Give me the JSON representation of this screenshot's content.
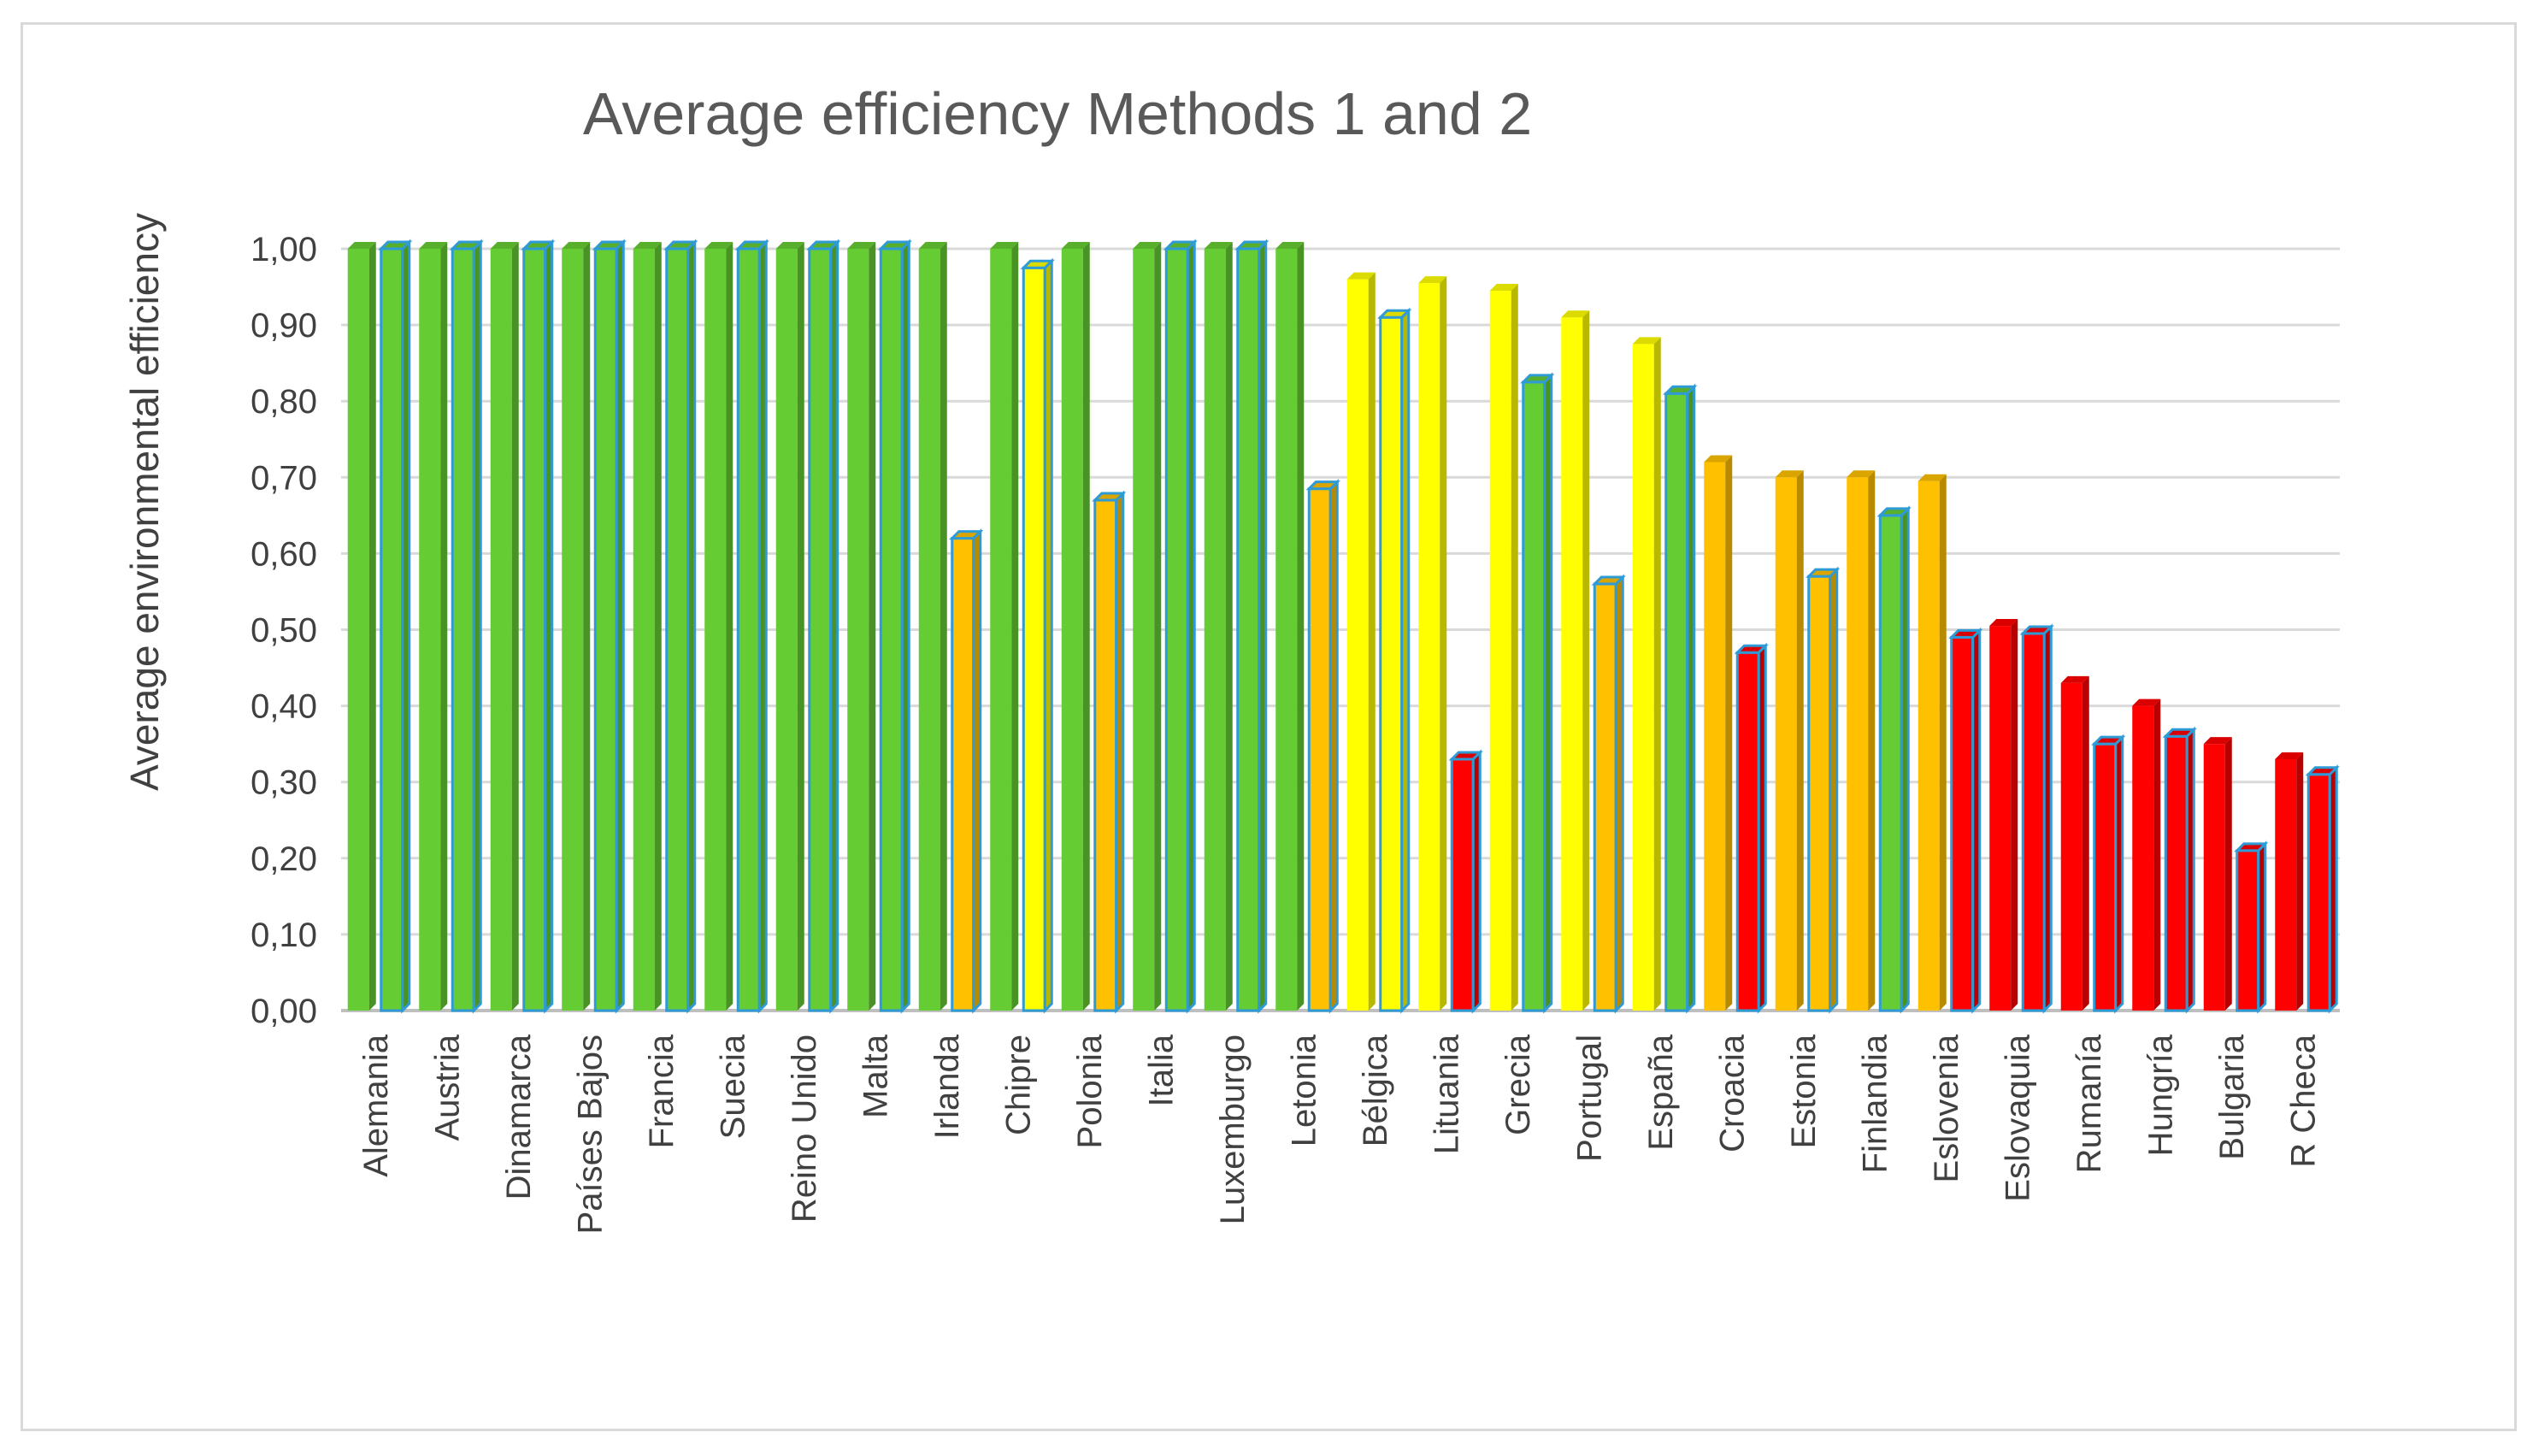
{
  "chart_data": {
    "type": "bar",
    "title": "Average efficiency Methods 1 and 2",
    "xlabel": "",
    "ylabel": "Average environmental efficiency",
    "ylim": [
      0,
      1
    ],
    "yticks": [
      "0,00",
      "0,10",
      "0,20",
      "0,30",
      "0,40",
      "0,50",
      "0,60",
      "0,70",
      "0,80",
      "0,90",
      "1,00"
    ],
    "grid": true,
    "legend": "none",
    "categories": [
      "Alemania",
      "Austria",
      "Dinamarca",
      "Países Bajos",
      "Francia",
      "Suecia",
      "Reino Unido",
      "Malta",
      "Irlanda",
      "Chipre",
      "Polonia",
      "Italia",
      "Luxemburgo",
      "Letonia",
      "Bélgica",
      "Lituania",
      "Grecia",
      "Portugal",
      "España",
      "Croacia",
      "Estonia",
      "Finlandia",
      "Eslovenia",
      "Eslovaquia",
      "Rumanía",
      "Hungría",
      "Bulgaria",
      "R Checa"
    ],
    "series": [
      {
        "values": [
          1.0,
          1.0,
          1.0,
          1.0,
          1.0,
          1.0,
          1.0,
          1.0,
          1.0,
          1.0,
          1.0,
          1.0,
          1.0,
          1.0,
          0.96,
          0.955,
          0.945,
          0.91,
          0.875,
          0.72,
          0.7,
          0.7,
          0.695,
          0.505,
          0.43,
          0.4,
          0.35,
          0.33
        ],
        "colors": [
          "#66cc33",
          "#66cc33",
          "#66cc33",
          "#66cc33",
          "#66cc33",
          "#66cc33",
          "#66cc33",
          "#66cc33",
          "#66cc33",
          "#66cc33",
          "#66cc33",
          "#66cc33",
          "#66cc33",
          "#66cc33",
          "#ffff00",
          "#ffff00",
          "#ffff00",
          "#ffff00",
          "#ffff00",
          "#ffc000",
          "#ffc000",
          "#ffc000",
          "#ffc000",
          "#ff0000",
          "#ff0000",
          "#ff0000",
          "#ff0000",
          "#ff0000"
        ]
      },
      {
        "values": [
          1.0,
          1.0,
          1.0,
          1.0,
          1.0,
          1.0,
          1.0,
          1.0,
          0.62,
          0.975,
          0.67,
          1.0,
          1.0,
          0.685,
          0.91,
          0.33,
          0.825,
          0.56,
          0.81,
          0.47,
          0.57,
          0.65,
          0.49,
          0.495,
          0.35,
          0.36,
          0.21,
          0.31
        ],
        "colors": [
          "#66cc33",
          "#66cc33",
          "#66cc33",
          "#66cc33",
          "#66cc33",
          "#66cc33",
          "#66cc33",
          "#66cc33",
          "#ffc000",
          "#ffff00",
          "#ffc000",
          "#66cc33",
          "#66cc33",
          "#ffc000",
          "#ffff00",
          "#ff0000",
          "#66cc33",
          "#ffc000",
          "#66cc33",
          "#ff0000",
          "#ffc000",
          "#66cc33",
          "#ff0000",
          "#ff0000",
          "#ff0000",
          "#ff0000",
          "#ff0000",
          "#ff0000"
        ]
      }
    ],
    "colors": {
      "series2_border": "#2e9bd6",
      "gridline": "#d9d9d9",
      "axis": "#bfbfbf"
    }
  }
}
